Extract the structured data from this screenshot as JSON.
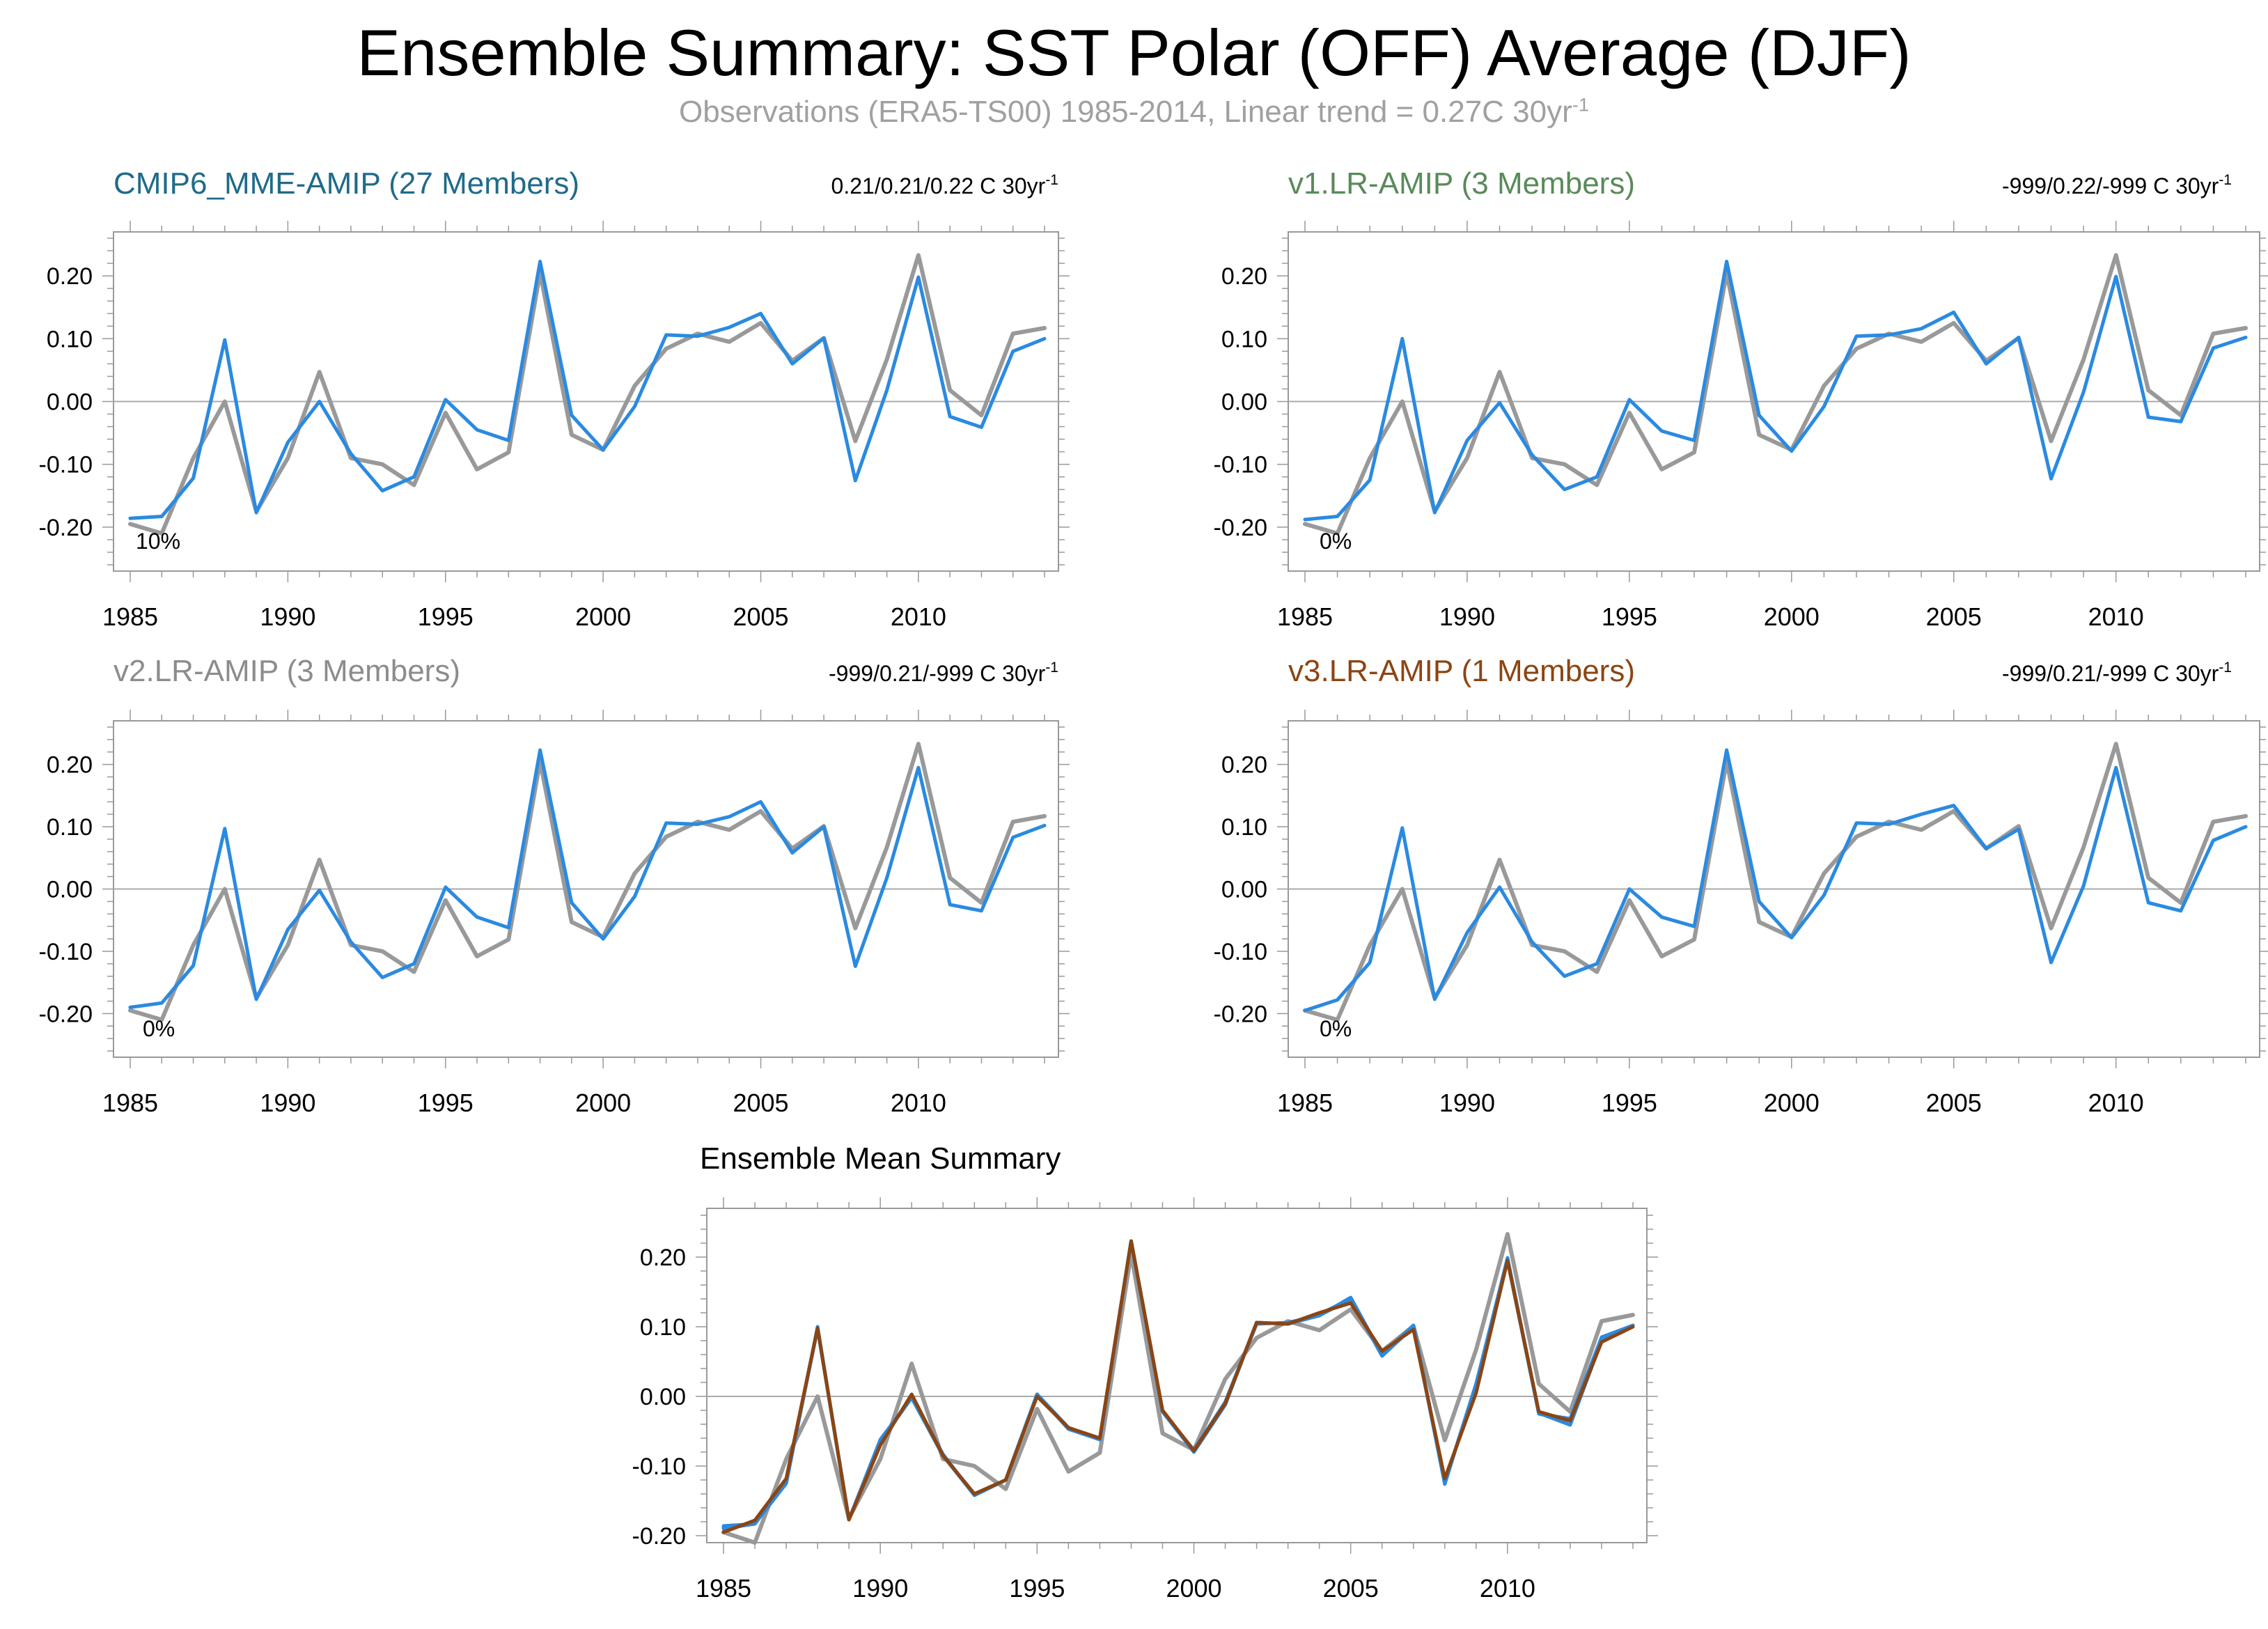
{
  "title": "Ensemble Summary: SST Polar (OFF) Average (DJF)",
  "subtitle": {
    "text": "Observations (ERA5-TS00) 1985-2014, Linear trend = 0.27C 30yr",
    "superscript": "-1"
  },
  "colors": {
    "observation": "#999999",
    "model": "#2b8ae0",
    "v3_model": "#8b4513",
    "zero_line": "#aaaaaa",
    "frame": "#999999"
  },
  "chart_data": [
    {
      "id": "cmip6",
      "type": "line",
      "title": "CMIP6_MME-AMIP (27 Members)",
      "title_color": "#1f6b8a",
      "trend_label": "0.21/0.21/0.22 C 30yr",
      "trend_superscript": "-1",
      "percent_label": "10%",
      "ylim": [
        -0.27,
        0.27
      ],
      "xlim": [
        1985,
        2014
      ],
      "x_ticks": [
        "1985",
        "1990",
        "1995",
        "2000",
        "2005",
        "2010"
      ],
      "y_ticks": [
        "0.20",
        "0.10",
        "0.00",
        "-0.10",
        "-0.20"
      ],
      "x": [
        1985,
        1986,
        1987,
        1988,
        1989,
        1990,
        1991,
        1992,
        1993,
        1994,
        1995,
        1996,
        1997,
        1998,
        1999,
        2000,
        2001,
        2002,
        2003,
        2004,
        2005,
        2006,
        2007,
        2008,
        2009,
        2010,
        2011,
        2012,
        2013,
        2014
      ],
      "series": [
        {
          "values": [
            -0.195,
            -0.21,
            -0.09,
            0.0,
            -0.175,
            -0.09,
            0.047,
            -0.09,
            -0.1,
            -0.133,
            -0.018,
            -0.108,
            -0.081,
            0.205,
            -0.053,
            -0.077,
            0.025,
            0.084,
            0.108,
            0.095,
            0.125,
            0.065,
            0.101,
            -0.063,
            0.067,
            0.233,
            0.018,
            -0.022,
            0.108,
            0.117
          ],
          "color": "#999999"
        },
        {
          "values": [
            -0.186,
            -0.183,
            -0.122,
            0.098,
            -0.177,
            -0.065,
            0.0,
            -0.083,
            -0.142,
            -0.12,
            0.003,
            -0.045,
            -0.062,
            0.223,
            -0.022,
            -0.077,
            -0.008,
            0.106,
            0.104,
            0.118,
            0.14,
            0.06,
            0.101,
            -0.126,
            0.018,
            0.198,
            -0.024,
            -0.041,
            0.08,
            0.1
          ],
          "color": "#2b8ae0"
        }
      ]
    },
    {
      "id": "v1",
      "type": "line",
      "title": "v1.LR-AMIP (3 Members)",
      "title_color": "#5a8a5a",
      "trend_label": "-999/0.22/-999 C 30yr",
      "trend_superscript": "-1",
      "percent_label": "0%",
      "ylim": [
        -0.27,
        0.27
      ],
      "xlim": [
        1985,
        2014
      ],
      "x_ticks": [
        "1985",
        "1990",
        "1995",
        "2000",
        "2005",
        "2010"
      ],
      "y_ticks": [
        "0.20",
        "0.10",
        "0.00",
        "-0.10",
        "-0.20"
      ],
      "x": [
        1985,
        1986,
        1987,
        1988,
        1989,
        1990,
        1991,
        1992,
        1993,
        1994,
        1995,
        1996,
        1997,
        1998,
        1999,
        2000,
        2001,
        2002,
        2003,
        2004,
        2005,
        2006,
        2007,
        2008,
        2009,
        2010,
        2011,
        2012,
        2013,
        2014
      ],
      "series": [
        {
          "values": [
            -0.195,
            -0.21,
            -0.09,
            0.0,
            -0.175,
            -0.09,
            0.047,
            -0.09,
            -0.1,
            -0.133,
            -0.018,
            -0.108,
            -0.081,
            0.205,
            -0.053,
            -0.077,
            0.025,
            0.084,
            0.108,
            0.095,
            0.125,
            0.065,
            0.101,
            -0.063,
            0.067,
            0.233,
            0.018,
            -0.022,
            0.108,
            0.117
          ],
          "color": "#999999"
        },
        {
          "values": [
            -0.188,
            -0.183,
            -0.125,
            0.1,
            -0.177,
            -0.062,
            -0.002,
            -0.085,
            -0.14,
            -0.12,
            0.003,
            -0.047,
            -0.062,
            0.223,
            -0.022,
            -0.079,
            -0.008,
            0.104,
            0.106,
            0.116,
            0.142,
            0.06,
            0.102,
            -0.123,
            0.015,
            0.199,
            -0.025,
            -0.032,
            0.085,
            0.102
          ],
          "color": "#2b8ae0"
        }
      ]
    },
    {
      "id": "v2",
      "type": "line",
      "title": "v2.LR-AMIP (3 Members)",
      "title_color": "#8c8c8c",
      "trend_label": "-999/0.21/-999 C 30yr",
      "trend_superscript": "-1",
      "percent_label": "0%",
      "ylim": [
        -0.27,
        0.27
      ],
      "xlim": [
        1985,
        2014
      ],
      "x_ticks": [
        "1985",
        "1990",
        "1995",
        "2000",
        "2005",
        "2010"
      ],
      "y_ticks": [
        "0.20",
        "0.10",
        "0.00",
        "-0.10",
        "-0.20"
      ],
      "x": [
        1985,
        1986,
        1987,
        1988,
        1989,
        1990,
        1991,
        1992,
        1993,
        1994,
        1995,
        1996,
        1997,
        1998,
        1999,
        2000,
        2001,
        2002,
        2003,
        2004,
        2005,
        2006,
        2007,
        2008,
        2009,
        2010,
        2011,
        2012,
        2013,
        2014
      ],
      "series": [
        {
          "values": [
            -0.195,
            -0.21,
            -0.09,
            0.0,
            -0.175,
            -0.09,
            0.047,
            -0.09,
            -0.1,
            -0.133,
            -0.018,
            -0.108,
            -0.081,
            0.205,
            -0.053,
            -0.077,
            0.025,
            0.084,
            0.108,
            0.095,
            0.125,
            0.065,
            0.101,
            -0.063,
            0.067,
            0.233,
            0.018,
            -0.022,
            0.108,
            0.117
          ],
          "color": "#999999"
        },
        {
          "values": [
            -0.19,
            -0.183,
            -0.123,
            0.097,
            -0.177,
            -0.065,
            -0.002,
            -0.085,
            -0.142,
            -0.12,
            0.003,
            -0.045,
            -0.062,
            0.223,
            -0.022,
            -0.08,
            -0.012,
            0.106,
            0.104,
            0.116,
            0.14,
            0.058,
            0.1,
            -0.124,
            0.018,
            0.195,
            -0.025,
            -0.035,
            0.083,
            0.102
          ],
          "color": "#2b8ae0"
        }
      ]
    },
    {
      "id": "v3",
      "type": "line",
      "title": "v3.LR-AMIP (1 Members)",
      "title_color": "#8b4513",
      "trend_label": "-999/0.21/-999 C 30yr",
      "trend_superscript": "-1",
      "percent_label": "0%",
      "ylim": [
        -0.27,
        0.27
      ],
      "xlim": [
        1985,
        2014
      ],
      "x_ticks": [
        "1985",
        "1990",
        "1995",
        "2000",
        "2005",
        "2010"
      ],
      "y_ticks": [
        "0.20",
        "0.10",
        "0.00",
        "-0.10",
        "-0.20"
      ],
      "x": [
        1985,
        1986,
        1987,
        1988,
        1989,
        1990,
        1991,
        1992,
        1993,
        1994,
        1995,
        1996,
        1997,
        1998,
        1999,
        2000,
        2001,
        2002,
        2003,
        2004,
        2005,
        2006,
        2007,
        2008,
        2009,
        2010,
        2011,
        2012,
        2013,
        2014
      ],
      "series": [
        {
          "values": [
            -0.195,
            -0.21,
            -0.09,
            0.0,
            -0.175,
            -0.09,
            0.047,
            -0.09,
            -0.1,
            -0.133,
            -0.018,
            -0.108,
            -0.081,
            0.205,
            -0.053,
            -0.077,
            0.025,
            0.084,
            0.108,
            0.095,
            0.125,
            0.065,
            0.101,
            -0.063,
            0.067,
            0.233,
            0.018,
            -0.022,
            0.108,
            0.117
          ],
          "color": "#999999"
        },
        {
          "values": [
            -0.195,
            -0.178,
            -0.118,
            0.098,
            -0.177,
            -0.07,
            0.003,
            -0.085,
            -0.14,
            -0.12,
            0.0,
            -0.045,
            -0.06,
            0.223,
            -0.02,
            -0.078,
            -0.01,
            0.106,
            0.104,
            0.12,
            0.134,
            0.065,
            0.096,
            -0.118,
            0.005,
            0.195,
            -0.022,
            -0.035,
            0.078,
            0.1
          ],
          "color": "#2b8ae0"
        }
      ]
    },
    {
      "id": "mean",
      "type": "line",
      "title": "Ensemble Mean Summary",
      "title_color": "#000000",
      "ylim": [
        -0.21,
        0.27
      ],
      "xlim": [
        1985,
        2014
      ],
      "x_ticks": [
        "1985",
        "1990",
        "1995",
        "2000",
        "2005",
        "2010"
      ],
      "y_ticks": [
        "0.20",
        "0.10",
        "0.00",
        "-0.10",
        "-0.20"
      ],
      "x": [
        1985,
        1986,
        1987,
        1988,
        1989,
        1990,
        1991,
        1992,
        1993,
        1994,
        1995,
        1996,
        1997,
        1998,
        1999,
        2000,
        2001,
        2002,
        2003,
        2004,
        2005,
        2006,
        2007,
        2008,
        2009,
        2010,
        2011,
        2012,
        2013,
        2014
      ],
      "series": [
        {
          "values": [
            -0.195,
            -0.21,
            -0.09,
            0.0,
            -0.175,
            -0.09,
            0.047,
            -0.09,
            -0.1,
            -0.133,
            -0.018,
            -0.108,
            -0.081,
            0.205,
            -0.053,
            -0.077,
            0.025,
            0.084,
            0.108,
            0.095,
            0.125,
            0.065,
            0.101,
            -0.063,
            0.067,
            0.233,
            0.018,
            -0.022,
            0.108,
            0.117
          ],
          "color": "#999999"
        },
        {
          "values": [
            -0.186,
            -0.183,
            -0.122,
            0.098,
            -0.177,
            -0.065,
            0.0,
            -0.083,
            -0.142,
            -0.12,
            0.003,
            -0.045,
            -0.062,
            0.223,
            -0.022,
            -0.077,
            -0.008,
            0.106,
            0.104,
            0.118,
            0.14,
            0.06,
            0.101,
            -0.126,
            0.018,
            0.198,
            -0.024,
            -0.041,
            0.08,
            0.1
          ],
          "color": "#2b8ae0"
        },
        {
          "values": [
            -0.188,
            -0.183,
            -0.125,
            0.1,
            -0.177,
            -0.062,
            -0.002,
            -0.085,
            -0.14,
            -0.12,
            0.003,
            -0.047,
            -0.062,
            0.223,
            -0.022,
            -0.079,
            -0.008,
            0.104,
            0.106,
            0.116,
            0.142,
            0.06,
            0.102,
            -0.123,
            0.015,
            0.199,
            -0.025,
            -0.032,
            0.085,
            0.102
          ],
          "color": "#2b8ae0"
        },
        {
          "values": [
            -0.19,
            -0.183,
            -0.123,
            0.097,
            -0.177,
            -0.065,
            -0.002,
            -0.085,
            -0.142,
            -0.12,
            0.003,
            -0.045,
            -0.062,
            0.223,
            -0.022,
            -0.08,
            -0.012,
            0.106,
            0.104,
            0.116,
            0.14,
            0.058,
            0.1,
            -0.124,
            0.018,
            0.195,
            -0.025,
            -0.035,
            0.083,
            0.102
          ],
          "color": "#2b8ae0"
        },
        {
          "values": [
            -0.195,
            -0.178,
            -0.118,
            0.098,
            -0.177,
            -0.07,
            0.003,
            -0.085,
            -0.14,
            -0.12,
            0.0,
            -0.045,
            -0.06,
            0.223,
            -0.02,
            -0.078,
            -0.01,
            0.106,
            0.104,
            0.12,
            0.134,
            0.065,
            0.096,
            -0.118,
            0.005,
            0.195,
            -0.022,
            -0.035,
            0.078,
            0.1
          ],
          "color": "#8b4513"
        }
      ]
    }
  ]
}
